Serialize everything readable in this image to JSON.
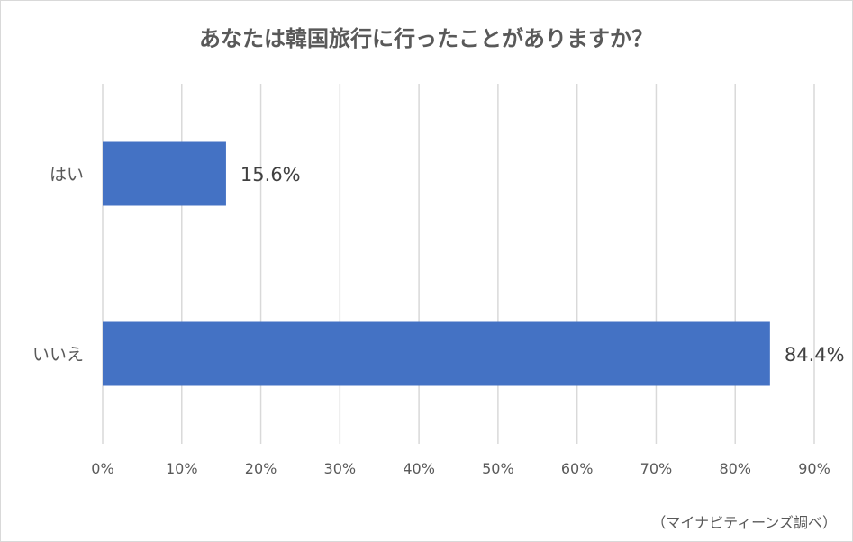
{
  "chart_data": {
    "type": "bar",
    "orientation": "horizontal",
    "title": "あなたは韓国旅行に行ったことがありますか？",
    "categories": [
      "はい",
      "いいえ"
    ],
    "values": [
      15.6,
      84.4
    ],
    "data_labels": [
      "15.6%",
      "84.4%"
    ],
    "xlim": [
      0,
      90
    ],
    "xticks": [
      0,
      10,
      20,
      30,
      40,
      50,
      60,
      70,
      80,
      90
    ],
    "xtick_labels": [
      "0%",
      "10%",
      "20%",
      "30%",
      "40%",
      "50%",
      "60%",
      "70%",
      "80%",
      "90%"
    ],
    "grid": true,
    "legend": "none",
    "bar_color": "#4472c4"
  },
  "source_note": "（マイナビティーンズ調べ）"
}
